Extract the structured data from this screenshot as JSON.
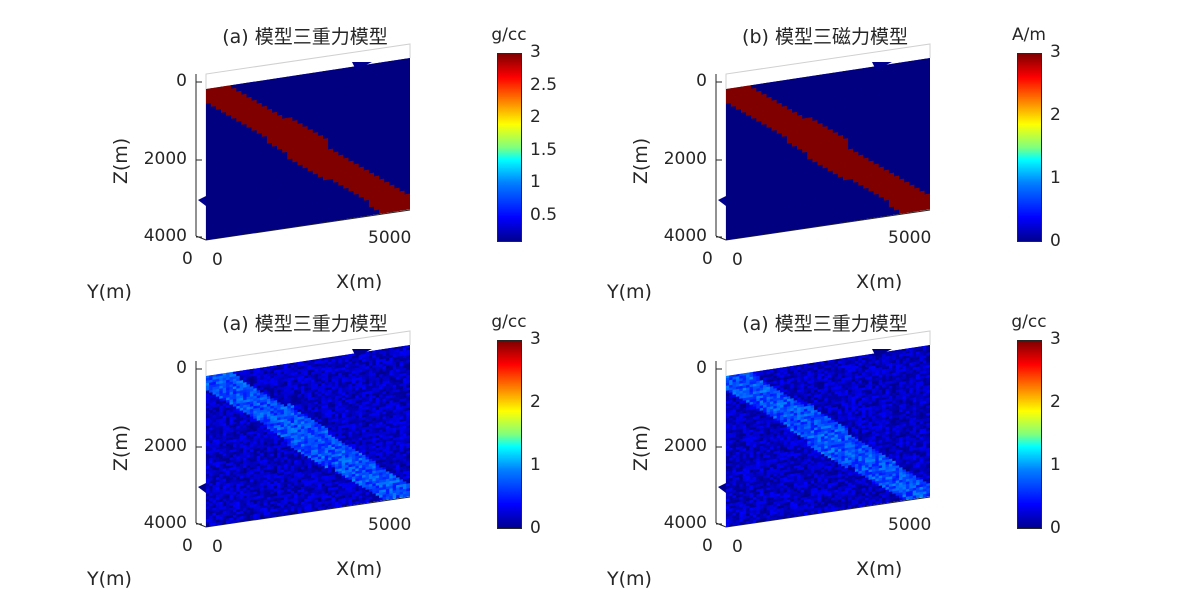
{
  "panels": [
    {
      "title": "(a) 模型三重力模型",
      "ylabel": "Z(m)",
      "xlabel": "X(m)",
      "ylabel2": "Y(m)",
      "z_ticks": [
        "0",
        "2000",
        "4000"
      ],
      "x_ticks": [
        "0",
        "5000"
      ],
      "y_ticks": [
        "0"
      ],
      "colorbar": {
        "unit": "g/cc",
        "ticks": [
          "3",
          "2.5",
          "2",
          "1.5",
          "1",
          "0.5"
        ],
        "tick_values": [
          3,
          2.5,
          2,
          1.5,
          1,
          0.5
        ],
        "range": [
          0.1,
          3
        ]
      },
      "kind": "model"
    },
    {
      "title": "(b) 模型三磁力模型",
      "ylabel": "Z(m)",
      "xlabel": "X(m)",
      "ylabel2": "Y(m)",
      "z_ticks": [
        "0",
        "2000",
        "4000"
      ],
      "x_ticks": [
        "0",
        "5000"
      ],
      "y_ticks": [
        "0"
      ],
      "colorbar": {
        "unit": "A/m",
        "ticks": [
          "3",
          "2",
          "1",
          "0"
        ],
        "tick_values": [
          3,
          2,
          1,
          0
        ],
        "range": [
          0,
          3
        ]
      },
      "kind": "model"
    },
    {
      "title": "(a) 模型三重力模型",
      "ylabel": "Z(m)",
      "xlabel": "X(m)",
      "ylabel2": "Y(m)",
      "z_ticks": [
        "0",
        "2000",
        "4000"
      ],
      "x_ticks": [
        "0",
        "5000"
      ],
      "y_ticks": [
        "0"
      ],
      "colorbar": {
        "unit": "g/cc",
        "ticks": [
          "3",
          "2",
          "1",
          "0"
        ],
        "tick_values": [
          3,
          2,
          1,
          0
        ],
        "range": [
          0,
          3
        ]
      },
      "kind": "inversion"
    },
    {
      "title": "(a) 模型三重力模型",
      "ylabel": "Z(m)",
      "xlabel": "X(m)",
      "ylabel2": "Y(m)",
      "z_ticks": [
        "0",
        "2000",
        "4000"
      ],
      "x_ticks": [
        "0",
        "5000"
      ],
      "y_ticks": [
        "0"
      ],
      "colorbar": {
        "unit": "g/cc",
        "ticks": [
          "3",
          "2",
          "1",
          "0"
        ],
        "tick_values": [
          3,
          2,
          1,
          0
        ],
        "range": [
          0,
          3
        ]
      },
      "kind": "inversion"
    }
  ],
  "chart_data": [
    {
      "type": "heatmap",
      "title": "(a) 模型三重力模型",
      "xlabel": "X(m)",
      "ylabel": "Z(m)",
      "zlabel": "Y(m)",
      "colorbar_label": "g/cc",
      "colorbar_range": [
        0.1,
        3
      ],
      "background_value": 0.1,
      "anomaly_value": 3,
      "description_values": {
        "x_tick_values": [
          0,
          5000
        ],
        "z_tick_values": [
          0,
          2000,
          4000
        ]
      }
    },
    {
      "type": "heatmap",
      "title": "(b) 模型三磁力模型",
      "xlabel": "X(m)",
      "ylabel": "Z(m)",
      "zlabel": "Y(m)",
      "colorbar_label": "A/m",
      "colorbar_range": [
        0,
        3
      ],
      "background_value": 0,
      "anomaly_value": 3,
      "description_values": {
        "x_tick_values": [
          0,
          5000
        ],
        "z_tick_values": [
          0,
          2000,
          4000
        ]
      }
    },
    {
      "type": "heatmap",
      "title": "(a) 模型三重力模型",
      "xlabel": "X(m)",
      "ylabel": "Z(m)",
      "zlabel": "Y(m)",
      "colorbar_label": "g/cc",
      "colorbar_range": [
        0,
        3
      ],
      "background_value": 0.2,
      "anomaly_value": 0.6,
      "description_values": {
        "x_tick_values": [
          0,
          5000
        ],
        "z_tick_values": [
          0,
          2000,
          4000
        ]
      }
    },
    {
      "type": "heatmap",
      "title": "(a) 模型三重力模型",
      "xlabel": "X(m)",
      "ylabel": "Z(m)",
      "zlabel": "Y(m)",
      "colorbar_label": "g/cc",
      "colorbar_range": [
        0,
        3
      ],
      "background_value": 0.2,
      "anomaly_value": 0.6,
      "description_values": {
        "x_tick_values": [
          0,
          5000
        ],
        "z_tick_values": [
          0,
          2000,
          4000
        ]
      }
    }
  ]
}
